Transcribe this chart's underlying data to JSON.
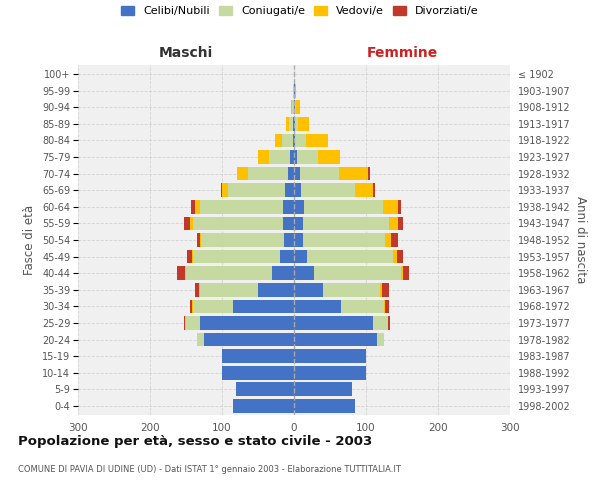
{
  "age_groups": [
    "0-4",
    "5-9",
    "10-14",
    "15-19",
    "20-24",
    "25-29",
    "30-34",
    "35-39",
    "40-44",
    "45-49",
    "50-54",
    "55-59",
    "60-64",
    "65-69",
    "70-74",
    "75-79",
    "80-84",
    "85-89",
    "90-94",
    "95-99",
    "100+"
  ],
  "birth_years": [
    "1998-2002",
    "1993-1997",
    "1988-1992",
    "1983-1987",
    "1978-1982",
    "1973-1977",
    "1968-1972",
    "1963-1967",
    "1958-1962",
    "1953-1957",
    "1948-1952",
    "1943-1947",
    "1938-1942",
    "1933-1937",
    "1928-1932",
    "1923-1927",
    "1918-1922",
    "1913-1917",
    "1908-1912",
    "1903-1907",
    "≤ 1902"
  ],
  "maschi": {
    "celibi": [
      85,
      80,
      100,
      100,
      125,
      130,
      85,
      50,
      30,
      20,
      14,
      15,
      15,
      12,
      9,
      5,
      2,
      1,
      0,
      0,
      0
    ],
    "coniugati": [
      0,
      0,
      0,
      0,
      10,
      20,
      55,
      80,
      120,
      120,
      115,
      125,
      115,
      80,
      55,
      30,
      15,
      6,
      3,
      1,
      0
    ],
    "vedovi": [
      0,
      0,
      0,
      0,
      0,
      1,
      2,
      2,
      2,
      2,
      2,
      5,
      8,
      8,
      15,
      15,
      10,
      4,
      1,
      0,
      0
    ],
    "divorziati": [
      0,
      0,
      0,
      0,
      0,
      2,
      3,
      5,
      10,
      7,
      4,
      8,
      5,
      2,
      0,
      0,
      0,
      0,
      0,
      0,
      0
    ]
  },
  "femmine": {
    "nubili": [
      85,
      80,
      100,
      100,
      115,
      110,
      65,
      40,
      28,
      18,
      12,
      12,
      14,
      10,
      8,
      4,
      2,
      1,
      1,
      1,
      0
    ],
    "coniugate": [
      0,
      0,
      0,
      0,
      10,
      20,
      60,
      80,
      120,
      120,
      115,
      120,
      110,
      75,
      55,
      30,
      15,
      5,
      2,
      1,
      0
    ],
    "vedove": [
      0,
      0,
      0,
      0,
      0,
      1,
      2,
      2,
      4,
      5,
      8,
      12,
      20,
      25,
      40,
      30,
      30,
      15,
      5,
      1,
      0
    ],
    "divorziate": [
      0,
      0,
      0,
      0,
      0,
      2,
      5,
      10,
      8,
      8,
      10,
      8,
      5,
      3,
      2,
      0,
      0,
      0,
      0,
      0,
      0
    ]
  },
  "colors": {
    "celibi_nubili": "#4472c4",
    "coniugati": "#c5d9a0",
    "vedovi": "#ffc000",
    "divorziati": "#c0392b"
  },
  "title": "Popolazione per età, sesso e stato civile - 2003",
  "subtitle": "COMUNE DI PAVIA DI UDINE (UD) - Dati ISTAT 1° gennaio 2003 - Elaborazione TUTTITALIA.IT",
  "xlabel_left": "Maschi",
  "xlabel_right": "Femmine",
  "ylabel_left": "Fasce di età",
  "ylabel_right": "Anni di nascita",
  "xlim": 300,
  "legend_labels": [
    "Celibi/Nubili",
    "Coniugati/e",
    "Vedovi/e",
    "Divorziati/e"
  ],
  "background_color": "#ffffff",
  "plot_bg_color": "#f0f0f0",
  "grid_color": "#cccccc"
}
